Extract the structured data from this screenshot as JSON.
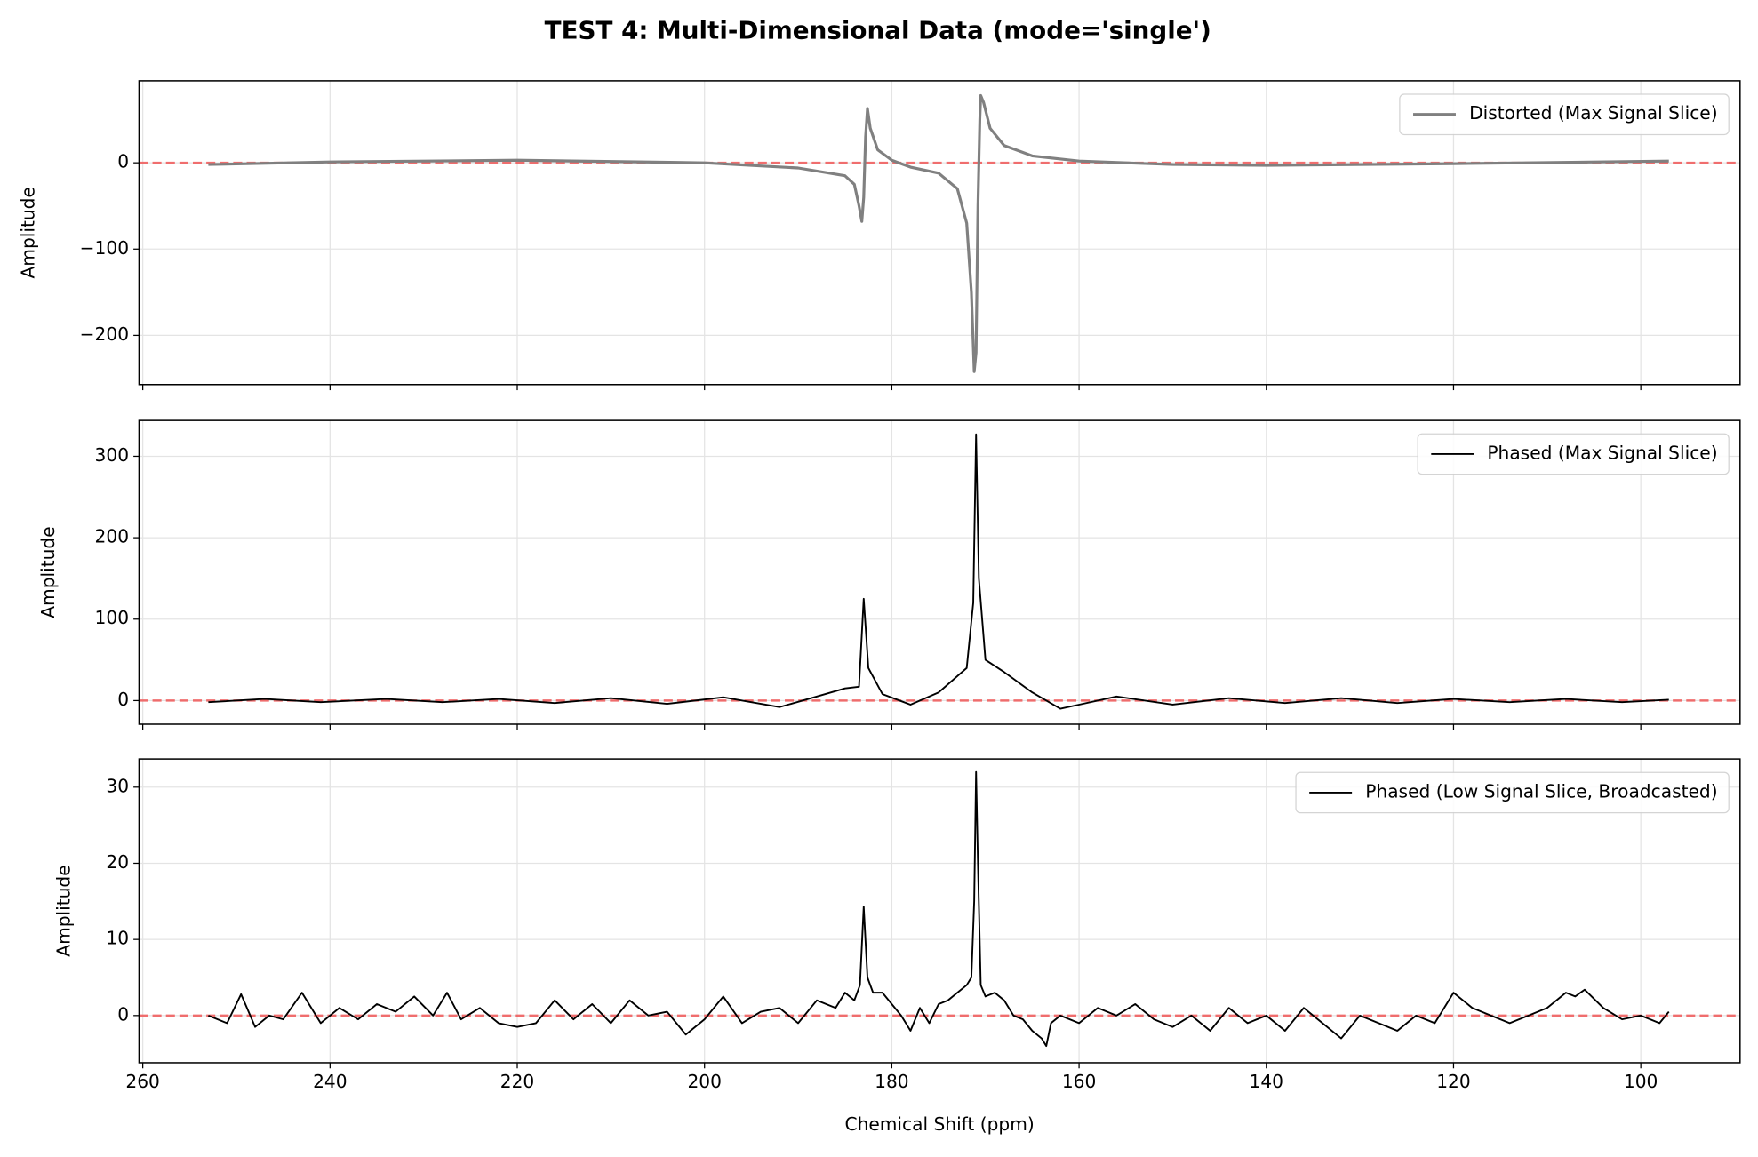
{
  "title": "TEST 4: Multi-Dimensional Data (mode='single')",
  "chart_data": [
    {
      "type": "line",
      "ylabel": "Amplitude",
      "grid": true,
      "legend": "upper right",
      "xlim": [
        260.4,
        89.4
      ],
      "xticks": [
        260,
        240,
        220,
        200,
        180,
        160,
        140,
        120,
        100
      ],
      "ylim": [
        -257,
        95
      ],
      "yticks": [
        0,
        {
          "value": -100,
          "label": "−100"
        },
        {
          "value": -200,
          "label": "−200"
        }
      ],
      "hline": 0,
      "hline_color": "#f06060",
      "x": [
        253,
        240,
        220,
        200,
        190,
        185,
        184,
        183.5,
        183.2,
        183,
        182.8,
        182.6,
        182.3,
        181.5,
        180,
        178,
        175,
        173,
        172,
        171.5,
        171.2,
        171,
        170.8,
        170.6,
        170.5,
        170.2,
        169.5,
        168,
        165,
        160,
        150,
        140,
        120,
        97
      ],
      "series": [
        {
          "name": "Distorted (Max Signal Slice)",
          "color": "#808080",
          "width": 2.5,
          "values": [
            -2,
            1,
            3,
            0,
            -6,
            -15,
            -25,
            -50,
            -68,
            -40,
            30,
            63,
            40,
            15,
            3,
            -5,
            -12,
            -30,
            -70,
            -150,
            -242,
            -220,
            -50,
            50,
            78,
            70,
            40,
            20,
            8,
            2,
            -2,
            -3,
            -1,
            2
          ]
        }
      ]
    },
    {
      "type": "line",
      "ylabel": "Amplitude",
      "grid": true,
      "legend": "upper right",
      "xlim": [
        260.4,
        89.4
      ],
      "xticks": [
        260,
        240,
        220,
        200,
        180,
        160,
        140,
        120,
        100
      ],
      "ylim": [
        -29,
        344
      ],
      "yticks": [
        0,
        100,
        200,
        300
      ],
      "hline": 0,
      "hline_color": "#f06060",
      "x": [
        253,
        247,
        241,
        234,
        228,
        222,
        216,
        210,
        204,
        198,
        192,
        188,
        185,
        183.5,
        183,
        182.5,
        181,
        178,
        175,
        172,
        171.3,
        171,
        170.7,
        170,
        168,
        165,
        162,
        160,
        156,
        150,
        144,
        138,
        132,
        126,
        120,
        114,
        108,
        102,
        97
      ],
      "series": [
        {
          "name": "Phased (Max Signal Slice)",
          "color": "#000000",
          "width": 1.5,
          "values": [
            -2,
            2,
            -2,
            2,
            -2,
            2,
            -3,
            3,
            -4,
            4,
            -8,
            5,
            15,
            17,
            125,
            40,
            8,
            -5,
            10,
            40,
            120,
            327,
            150,
            50,
            35,
            10,
            -10,
            -5,
            5,
            -5,
            3,
            -3,
            3,
            -3,
            2,
            -2,
            2,
            -2,
            1
          ]
        }
      ]
    },
    {
      "type": "line",
      "ylabel": "Amplitude",
      "xlabel": "Chemical Shift (ppm)",
      "grid": true,
      "legend": "upper right",
      "xlim": [
        260.4,
        89.4
      ],
      "xticks": [
        260,
        240,
        220,
        200,
        180,
        160,
        140,
        120,
        100
      ],
      "ylim": [
        -6.2,
        33.7
      ],
      "yticks": [
        0,
        10,
        20,
        30
      ],
      "hline": 0,
      "hline_color": "#f06060",
      "x": [
        253,
        251,
        249.5,
        248,
        246.5,
        245,
        243,
        241,
        239,
        237,
        235,
        233,
        231,
        229,
        227.5,
        226,
        224,
        222,
        220,
        218,
        216,
        214,
        212,
        210,
        208,
        206,
        204,
        202,
        200,
        198,
        196,
        194,
        192,
        190,
        188,
        186,
        185,
        184,
        183.4,
        183,
        182.6,
        182,
        181,
        180,
        179,
        178,
        177,
        176,
        175,
        174,
        173,
        172,
        171.5,
        171.2,
        171,
        170.8,
        170.5,
        170,
        169,
        168,
        167,
        166,
        165,
        164,
        163.5,
        163,
        162,
        160,
        158,
        156,
        154,
        152,
        150,
        148,
        146,
        144,
        142,
        140,
        138,
        136,
        134,
        132,
        130,
        128,
        126,
        124,
        122,
        120,
        118,
        116,
        114,
        112,
        110,
        108,
        107,
        106,
        104,
        102,
        100,
        98,
        97
      ],
      "series": [
        {
          "name": "Phased (Low Signal Slice, Broadcasted)",
          "color": "#000000",
          "width": 1.5,
          "values": [
            0,
            -1,
            2.8,
            -1.5,
            0,
            -0.5,
            3,
            -1,
            1,
            -0.5,
            1.5,
            0.5,
            2.5,
            0,
            3,
            -0.5,
            1,
            -1,
            -1.5,
            -1,
            2,
            -0.5,
            1.5,
            -1,
            2,
            0,
            0.5,
            -2.5,
            -0.5,
            2.5,
            -1,
            0.5,
            1,
            -1,
            2,
            1,
            3,
            2,
            4,
            14.3,
            5,
            3,
            3,
            1.5,
            0,
            -2,
            1,
            -1,
            1.5,
            2,
            3,
            4,
            5,
            15,
            32,
            20,
            4,
            2.5,
            3,
            2,
            0,
            -0.5,
            -2,
            -3,
            -4,
            -1,
            0,
            -1,
            1,
            0,
            1.5,
            -0.5,
            -1.5,
            0,
            -2,
            1,
            -1,
            0,
            -2,
            1,
            -1,
            -3,
            0,
            -1,
            -2,
            0,
            -1,
            3,
            1,
            0,
            -1,
            0,
            1,
            3,
            2.5,
            3.4,
            1,
            -0.5,
            0,
            -1,
            0.5
          ]
        }
      ]
    }
  ]
}
